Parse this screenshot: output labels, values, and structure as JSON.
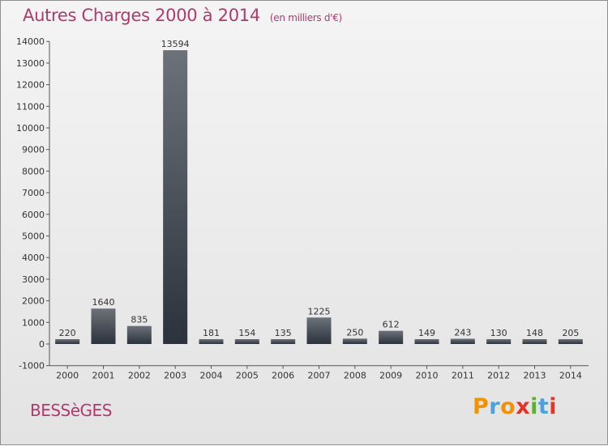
{
  "title": "Autres Charges 2000 à 2014",
  "unit_note": "(en milliers d'€)",
  "commune": "BESSèGES",
  "logo": {
    "letters": [
      "P",
      "r",
      "o",
      "x",
      "i",
      "t",
      "i"
    ],
    "colors": [
      "#f39200",
      "#4aa3df",
      "#f39200",
      "#e6332a",
      "#5bb231",
      "#4aa3df",
      "#e6332a"
    ]
  },
  "colors": {
    "bar_top": "#6d727a",
    "bar_bottom": "#2b323b",
    "title": "#b03a6e"
  },
  "chart_data": {
    "type": "bar",
    "categories": [
      "2000",
      "2001",
      "2002",
      "2003",
      "2004",
      "2005",
      "2006",
      "2007",
      "2008",
      "2009",
      "2010",
      "2011",
      "2012",
      "2013",
      "2014"
    ],
    "values": [
      220,
      1640,
      835,
      13594,
      181,
      154,
      135,
      1225,
      250,
      612,
      149,
      243,
      130,
      148,
      205
    ],
    "data_labels": [
      "220",
      "1640",
      "835",
      "13594",
      "181",
      "154",
      "135",
      "1225",
      "250",
      "612",
      "149",
      "243",
      "130",
      "148",
      "205"
    ],
    "yticks": [
      "-1000",
      "0",
      "1000",
      "2000",
      "3000",
      "4000",
      "5000",
      "6000",
      "7000",
      "8000",
      "9000",
      "10000",
      "11000",
      "12000",
      "13000",
      "14000"
    ],
    "ylim": [
      -1000,
      14000
    ],
    "grid": false
  }
}
